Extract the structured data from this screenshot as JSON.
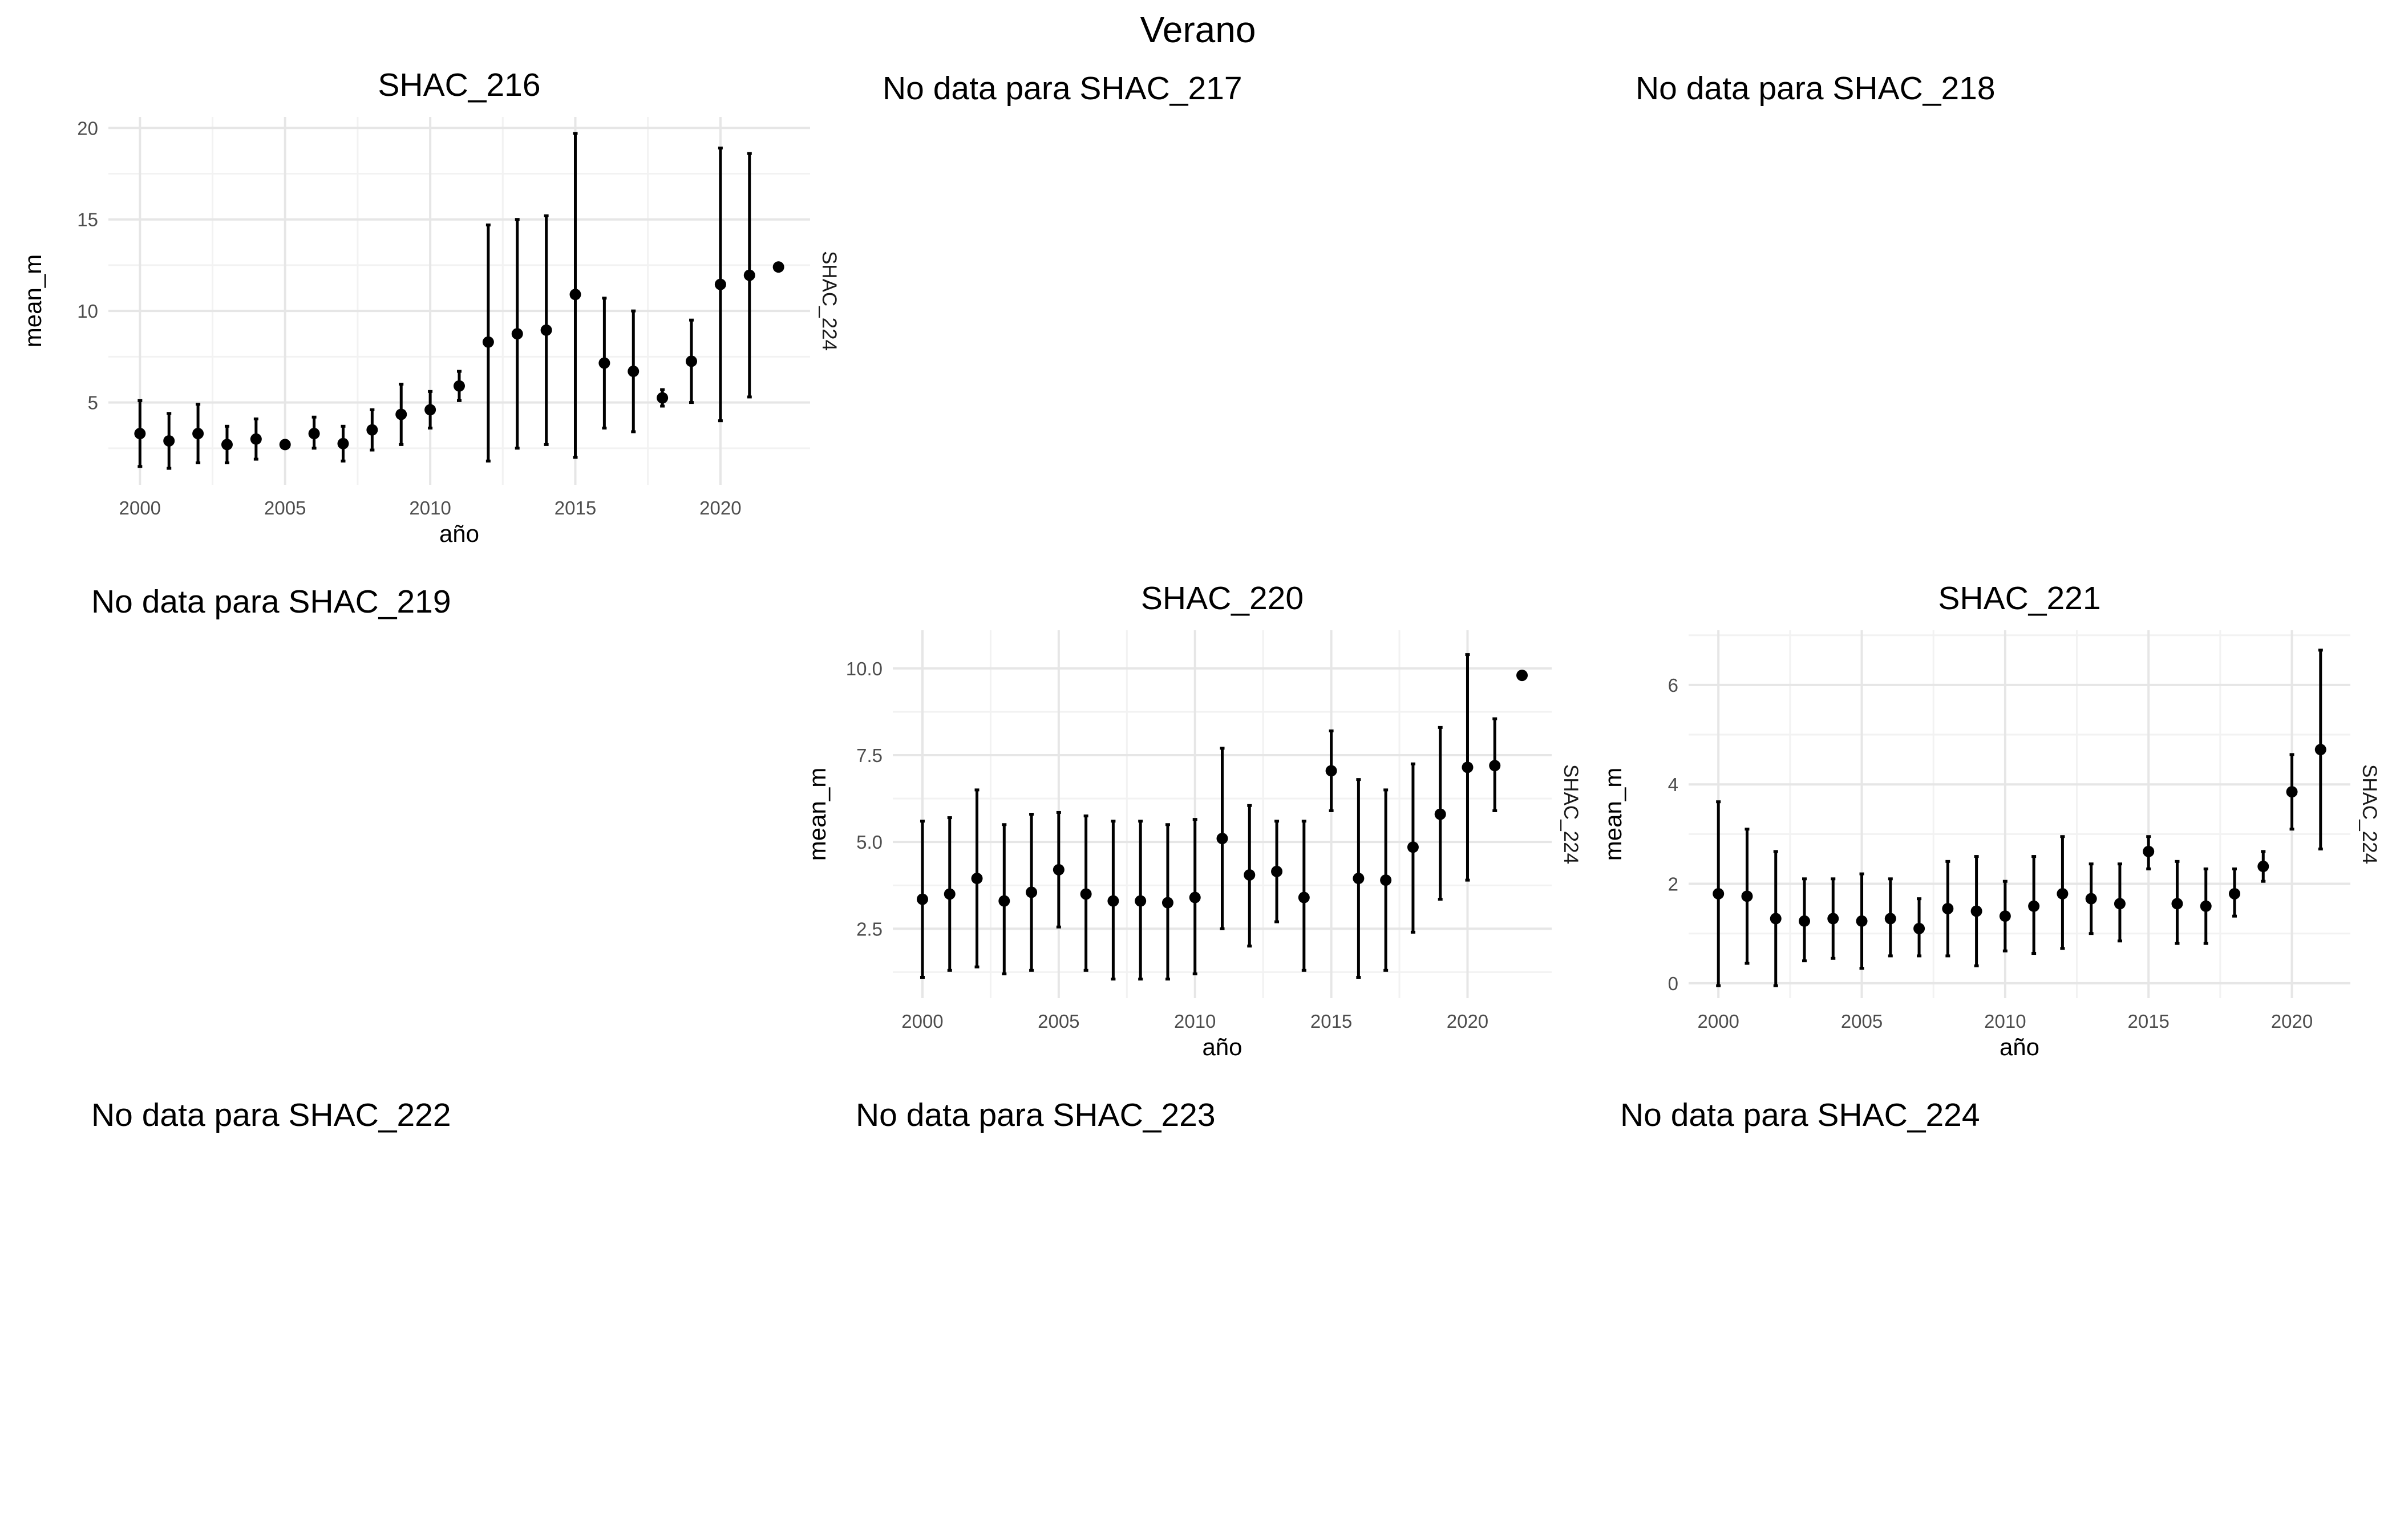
{
  "figure": {
    "title": "Verano"
  },
  "no_data_panels": [
    {
      "id": "shac217",
      "text": "No data para SHAC_217"
    },
    {
      "id": "shac218",
      "text": "No data para SHAC_218"
    },
    {
      "id": "shac219",
      "text": "No data para SHAC_219"
    },
    {
      "id": "shac222",
      "text": "No data para SHAC_222"
    },
    {
      "id": "shac223",
      "text": "No data para SHAC_223"
    },
    {
      "id": "shac224",
      "text": "No data para SHAC_224"
    }
  ],
  "chart_data": [
    {
      "type": "scatter",
      "title": "SHAC_216",
      "xlabel": "año",
      "ylabel": "mean_m",
      "strip_label": "SHAC_224",
      "xlim": [
        2000,
        2022
      ],
      "ylim": [
        0.5,
        20.6
      ],
      "xticks": [
        2000,
        2005,
        2010,
        2015,
        2020
      ],
      "yticks": [
        5,
        10,
        15,
        20
      ],
      "ytick_labels": [
        "5",
        "10",
        "15",
        "20"
      ],
      "grid": true,
      "legend": "none",
      "series": [
        {
          "x": [
            2000,
            2001,
            2002,
            2003,
            2004,
            2005,
            2006,
            2007,
            2008,
            2009,
            2010,
            2011,
            2012,
            2013,
            2014,
            2015,
            2016,
            2017,
            2018,
            2019,
            2020,
            2021,
            2022
          ],
          "y": [
            3.3,
            2.9,
            3.3,
            2.7,
            3.0,
            2.7,
            3.3,
            2.75,
            3.5,
            4.35,
            4.6,
            5.9,
            8.3,
            8.75,
            8.95,
            10.9,
            7.15,
            6.7,
            5.25,
            7.25,
            11.45,
            11.95,
            12.4
          ],
          "ymin": [
            1.5,
            1.4,
            1.7,
            1.7,
            1.9,
            2.7,
            2.5,
            1.8,
            2.4,
            2.7,
            3.6,
            5.1,
            1.8,
            2.5,
            2.7,
            2.0,
            3.6,
            3.4,
            4.8,
            5.0,
            4.0,
            5.3,
            12.4
          ],
          "ymax": [
            5.1,
            4.4,
            4.9,
            3.7,
            4.1,
            2.7,
            4.2,
            3.7,
            4.6,
            6.0,
            5.6,
            6.7,
            14.7,
            15.0,
            15.2,
            19.7,
            10.7,
            10.0,
            5.7,
            9.5,
            18.9,
            18.6,
            12.4
          ]
        }
      ]
    },
    {
      "type": "scatter",
      "title": "SHAC_220",
      "xlabel": "año",
      "ylabel": "mean_m",
      "strip_label": "SHAC_224",
      "xlim": [
        2000,
        2022
      ],
      "ylim": [
        0.5,
        11.1
      ],
      "xticks": [
        2000,
        2005,
        2010,
        2015,
        2020
      ],
      "yticks": [
        2.5,
        5.0,
        7.5,
        10.0
      ],
      "ytick_labels": [
        "2.5",
        "5.0",
        "7.5",
        "10.0"
      ],
      "grid": true,
      "legend": "none",
      "series": [
        {
          "x": [
            2000,
            2001,
            2002,
            2003,
            2004,
            2005,
            2006,
            2007,
            2008,
            2009,
            2010,
            2011,
            2012,
            2013,
            2014,
            2015,
            2016,
            2017,
            2018,
            2019,
            2020,
            2021,
            2022
          ],
          "y": [
            3.35,
            3.5,
            3.95,
            3.3,
            3.55,
            4.2,
            3.5,
            3.3,
            3.3,
            3.25,
            3.4,
            5.1,
            4.05,
            4.15,
            3.4,
            7.05,
            3.95,
            3.9,
            4.85,
            5.8,
            7.15,
            7.2,
            9.8
          ],
          "ymin": [
            1.1,
            1.3,
            1.4,
            1.2,
            1.3,
            2.55,
            1.3,
            1.05,
            1.05,
            1.05,
            1.2,
            2.5,
            2.0,
            2.7,
            1.3,
            5.9,
            1.1,
            1.3,
            2.4,
            3.35,
            3.9,
            5.9,
            9.8
          ],
          "ymax": [
            5.6,
            5.7,
            6.5,
            5.5,
            5.8,
            5.85,
            5.75,
            5.6,
            5.6,
            5.5,
            5.65,
            7.7,
            6.05,
            5.6,
            5.6,
            8.2,
            6.8,
            6.5,
            7.25,
            8.3,
            10.4,
            8.55,
            9.8
          ]
        }
      ]
    },
    {
      "type": "scatter",
      "title": "SHAC_221",
      "xlabel": "año",
      "ylabel": "mean_m",
      "strip_label": "SHAC_224",
      "xlim": [
        2000,
        2021
      ],
      "ylim": [
        -0.3,
        7.1
      ],
      "xticks": [
        2000,
        2005,
        2010,
        2015,
        2020
      ],
      "yticks": [
        0,
        2,
        4,
        6
      ],
      "ytick_labels": [
        "0",
        "2",
        "4",
        "6"
      ],
      "grid": true,
      "legend": "none",
      "series": [
        {
          "x": [
            2000,
            2001,
            2002,
            2003,
            2004,
            2005,
            2006,
            2007,
            2008,
            2009,
            2010,
            2011,
            2012,
            2013,
            2014,
            2015,
            2016,
            2017,
            2018,
            2019,
            2020,
            2021
          ],
          "y": [
            1.8,
            1.75,
            1.3,
            1.25,
            1.3,
            1.25,
            1.3,
            1.1,
            1.5,
            1.45,
            1.35,
            1.55,
            1.8,
            1.7,
            1.6,
            2.65,
            1.6,
            1.55,
            1.8,
            2.35,
            3.85,
            4.7
          ],
          "ymin": [
            -0.05,
            0.4,
            -0.05,
            0.45,
            0.5,
            0.3,
            0.55,
            0.55,
            0.55,
            0.35,
            0.65,
            0.6,
            0.7,
            1.0,
            0.85,
            2.3,
            0.8,
            0.8,
            1.35,
            2.05,
            3.1,
            2.7
          ],
          "ymax": [
            3.65,
            3.1,
            2.65,
            2.1,
            2.1,
            2.2,
            2.1,
            1.7,
            2.45,
            2.55,
            2.05,
            2.55,
            2.95,
            2.4,
            2.4,
            2.95,
            2.45,
            2.3,
            2.3,
            2.65,
            4.6,
            6.7
          ]
        }
      ]
    }
  ]
}
